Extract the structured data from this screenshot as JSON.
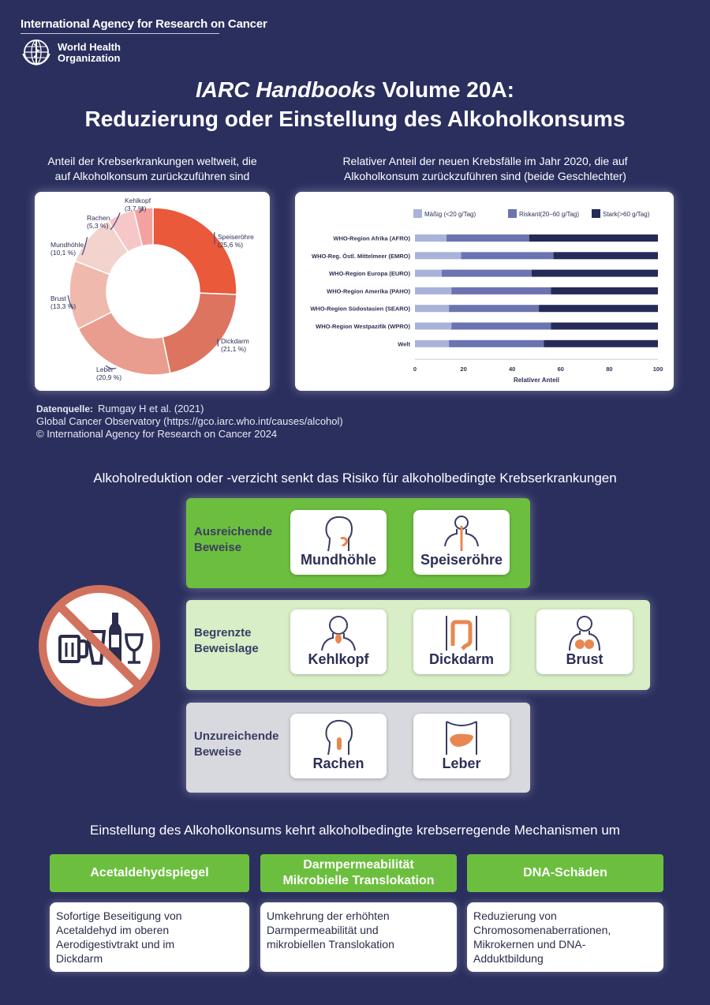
{
  "header": {
    "org_line": "International Agency for Research on Cancer",
    "who_line1": "World Health",
    "who_line2": "Organization",
    "title_italic": "IARC Handbooks",
    "title_rest": " Volume 20A:",
    "title_line2": "Reduzierung oder Einstellung des Alkoholkonsums"
  },
  "donut_section": {
    "subtitle_line1": "Anteil der Krebserkrankungen weltweit, die",
    "subtitle_line2": "auf Alkoholkonsum zurückzuführen sind"
  },
  "bar_section": {
    "subtitle_line1": "Relativer Anteil der neuen Krebsfälle im Jahr 2020, die auf",
    "subtitle_line2": "Alkoholkonsum zurückzuführen sind (beide Geschlechter)"
  },
  "chart_data": [
    {
      "type": "pie",
      "categories": [
        "Speiseröhre",
        "Dickdarm",
        "Leber",
        "Brust",
        "Mundhöhle",
        "Rachen",
        "Kehlkopf"
      ],
      "values": [
        25.6,
        21.1,
        20.9,
        13.3,
        10.1,
        5.3,
        3.7
      ],
      "labels": [
        "(25,6 %)",
        "(21,1 %)",
        "(20,9 %)",
        "(13,3 %)",
        "(10,1 %)",
        "(5,3 %)",
        "(3,7 %)"
      ],
      "colors": [
        "#e9593a",
        "#dd7460",
        "#e89d8e",
        "#efb9ad",
        "#f2d3ce",
        "#f6c7c6",
        "#f4a2a0"
      ]
    },
    {
      "type": "bar",
      "stacked": true,
      "orientation": "horizontal",
      "categories": [
        "WHO-Region Afrika (AFRO)",
        "WHO-Reg. Östl. Mittelmeer (EMRO)",
        "WHO-Region Europa (EURO)",
        "WHO-Region Amerika (PAHO)",
        "WHO-Region Südostasien (SEARO)",
        "WHO-Region Westpazifik (WPRO)",
        "Welt"
      ],
      "series": [
        {
          "name": "Mäßig (<20 g/Tag)",
          "color": "#a9b3da",
          "values": [
            13,
            19,
            11,
            15,
            14,
            15,
            14
          ]
        },
        {
          "name": "Riskant(20–60 g/Tag)",
          "color": "#6b73b0",
          "values": [
            34,
            38,
            37,
            41,
            37,
            41,
            39
          ]
        },
        {
          "name": "Stark(>60 g/Tag)",
          "color": "#252a57",
          "values": [
            53,
            43,
            52,
            44,
            49,
            44,
            47
          ]
        }
      ],
      "xlabel": "Relativer Anteil",
      "xticks": [
        "0",
        "20",
        "40",
        "60",
        "80",
        "100"
      ],
      "xlim": [
        0,
        100
      ],
      "legend_position": "top"
    }
  ],
  "source": {
    "label": "Datenquelle:",
    "line1": "Rumgay H et al. (2021)",
    "line2": "Global Cancer Observatory (https://gco.iarc.who.int/causes/alcohol)",
    "line3": "© International Agency for Research on Cancer 2024"
  },
  "evidence": {
    "title": "Alkoholreduktion oder -verzicht senkt das Risiko für alkoholbedingte Krebserkrankungen",
    "sufficient": {
      "label1": "Ausreichende",
      "label2": "Beweise",
      "color": "#6cbf3e",
      "items": [
        "Mundhöhle",
        "Speiseröhre"
      ]
    },
    "limited": {
      "label1": "Begrenzte",
      "label2": "Beweislage",
      "color": "#d7eec6",
      "items": [
        "Kehlkopf",
        "Dickdarm",
        "Brust"
      ]
    },
    "insufficient": {
      "label1": "Unzureichende",
      "label2": "Beweise",
      "color": "#d8d9de",
      "items": [
        "Rachen",
        "Leber"
      ]
    }
  },
  "mechanisms": {
    "title": "Einstellung des Alkoholkonsums kehrt alkoholbedingte krebserregende Mechanismen um",
    "items": [
      {
        "head1": "Acetaldehydspiegel",
        "head2": "",
        "body": [
          "Sofortige Beseitigung von",
          "Acetaldehyd im oberen",
          "Aerodigestivtrakt und im",
          "Dickdarm"
        ]
      },
      {
        "head1": "Darmpermeabilität",
        "head2": "Mikrobielle Translokation",
        "body": [
          "Umkehrung der erhöhten",
          "Darmpermeabilität und",
          "mikrobiellen Translokation"
        ]
      },
      {
        "head1": "DNA-Schäden",
        "head2": "",
        "body": [
          "Reduzierung von",
          "Chromosomenaberrationen,",
          "Mikrokernen und DNA-",
          "Adduktbildung"
        ]
      }
    ]
  },
  "colors": {
    "background": "#2b2f5e",
    "accent_green": "#6cbf3e",
    "ban_sign": "#d1725f"
  }
}
